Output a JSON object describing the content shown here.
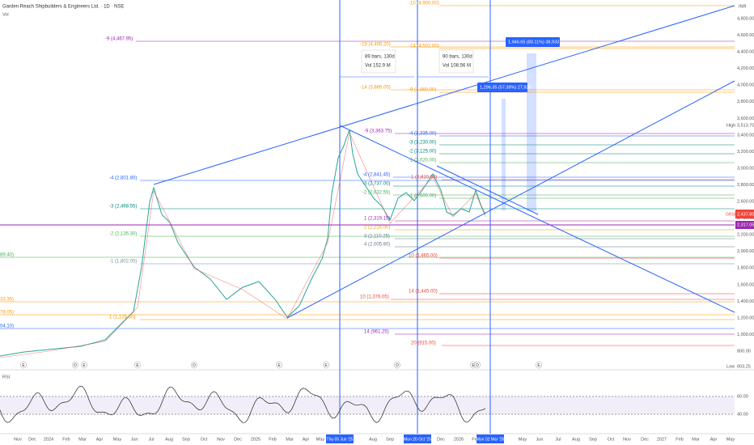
{
  "header": {
    "title": "Garden Reach Shipbuilders & Engineers Ltd. · 1D · NSE",
    "volume_label": "Vol",
    "currency": "INR"
  },
  "price_axis": [
    "4,800.00",
    "4,600.00",
    "4,400.00",
    "4,200.00",
    "4,000.00",
    "3,800.00",
    "3,600.00",
    "3,400.00",
    "3,200.00",
    "3,000.00",
    "2,800.00",
    "2,600.00",
    "2,400.00",
    "2,200.00",
    "2,000.00",
    "1,800.00",
    "1,600.00",
    "1,400.00",
    "1,200.00",
    "1,000.00",
    "800.00"
  ],
  "price_markers": {
    "high_label": "High",
    "high_value": "3,513.70",
    "symbol": "GRSE",
    "last_price": "2,437.80",
    "second_price": "2,317.05",
    "low_label": "Low",
    "low_value": "603.25"
  },
  "fib_levels": [
    "-9 (4,467.95)",
    "-10 (4,900.00)",
    "-19 (4,495.20)",
    "-14 (4,502.00)",
    "-14 (3,886.05)",
    "-9 (3,860.00)",
    "-9 (3,363.75)",
    "-4 (3,335.00)",
    "-3 (3,230.00)",
    "-2 (3,125.00)",
    "-1 (3,020.00)",
    "-4 (2,801.80)",
    "-4 (2,841.45)",
    "1 (2,810.00)",
    "-3 (2,737.00)",
    "-2 (2,632.55)",
    "-1 (2,600.00)",
    "-3 (2,468.55)",
    "1 (2,319.15)",
    "2 (2,216.00)",
    "-2 (2,135.30)",
    "3 (2,110.25)",
    "4 (2,005.80)",
    "10 (1,865.00)",
    "-1 (1,802.05)",
    "14 (1,445.00)",
    "10 (1,376.05)",
    "1 (1,135.60)",
    "14 (961.25)",
    "20 (915.00)",
    "89.40)",
    "33.35)",
    "78.05)",
    "04.10)"
  ],
  "measurements": [
    {
      "bars": "89 bars, 130d",
      "volume": "Vol 152.9 M"
    },
    {
      "bars": "90 bars, 130d",
      "volume": "Vol 108.56 M"
    }
  ],
  "price_changes": [
    "1,296.35 (57.38%) 27,926",
    "1,946.65 (80.11%) 38,933"
  ],
  "event_markers": [
    "E",
    "D",
    "E",
    "E",
    "D",
    "E",
    "E",
    "D",
    "E",
    "D",
    "E"
  ],
  "time_axis": [
    "Nov",
    "Dec",
    "2024",
    "Feb",
    "Mar",
    "Apr",
    "May",
    "Jun",
    "Jul",
    "Aug",
    "Sep",
    "Oct",
    "Nov",
    "Dec",
    "2025",
    "Feb",
    "Mar",
    "Apr",
    "May",
    "Aug",
    "Sep",
    "Dec",
    "2026",
    "Feb",
    "May",
    "Jun",
    "Jul",
    "Aug",
    "Sep",
    "Oct",
    "Nov",
    "Dec",
    "2027",
    "Feb",
    "Mar",
    "Apr",
    "May"
  ],
  "cursor_dates": [
    "Thu 05 Jun '25",
    "Mon 20 Oct '25",
    "Mon 02 Mar '26"
  ],
  "rsi": {
    "label": "RSI",
    "levels": [
      "60.00",
      "40.00"
    ]
  }
}
